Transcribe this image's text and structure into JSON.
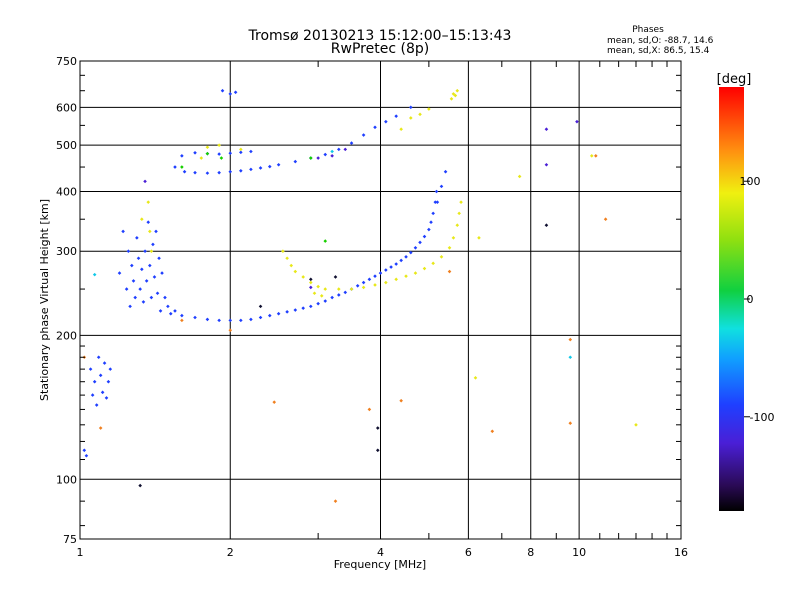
{
  "chart_data": {
    "type": "scatter",
    "title": "Tromsø 20130213 15:12:00–15:13:43",
    "subtitle": "RwPretec (8p)",
    "xlabel": "Frequency [MHz]",
    "ylabel": "Stationary phase Virtual Height [km]",
    "x_scale": "log",
    "y_scale": "log",
    "xlim": [
      1,
      16
    ],
    "ylim": [
      75,
      750
    ],
    "grid": true,
    "x_ticks": [
      1,
      2,
      4,
      6,
      8,
      10,
      16
    ],
    "y_ticks": [
      75,
      100,
      200,
      300,
      400,
      500,
      600,
      750
    ],
    "phase_info": {
      "heading": "Phases",
      "line1": "mean, sd,O: -88.7, 14.6",
      "line2": "mean, sd,X:  86.5, 15.4"
    },
    "colorbar": {
      "label": "[deg]",
      "range": [
        -180,
        180
      ],
      "ticks": [
        100,
        0,
        -100
      ]
    },
    "series": [
      {
        "phase": -100,
        "color": "#1f3fff",
        "points": [
          [
            1.02,
            115
          ],
          [
            1.03,
            112
          ],
          [
            1.05,
            170
          ],
          [
            1.06,
            150
          ],
          [
            1.07,
            160
          ],
          [
            1.08,
            143
          ],
          [
            1.09,
            180
          ],
          [
            1.1,
            165
          ],
          [
            1.11,
            152
          ],
          [
            1.12,
            175
          ],
          [
            1.13,
            148
          ],
          [
            1.14,
            160
          ],
          [
            1.15,
            170
          ],
          [
            1.2,
            270
          ],
          [
            1.22,
            330
          ],
          [
            1.24,
            250
          ],
          [
            1.25,
            300
          ],
          [
            1.26,
            230
          ],
          [
            1.27,
            280
          ],
          [
            1.28,
            260
          ],
          [
            1.29,
            240
          ],
          [
            1.3,
            320
          ],
          [
            1.31,
            290
          ],
          [
            1.32,
            250
          ],
          [
            1.33,
            275
          ],
          [
            1.34,
            235
          ],
          [
            1.35,
            300
          ],
          [
            1.36,
            260
          ],
          [
            1.37,
            345
          ],
          [
            1.38,
            280
          ],
          [
            1.39,
            240
          ],
          [
            1.4,
            310
          ],
          [
            1.41,
            265
          ],
          [
            1.42,
            330
          ],
          [
            1.43,
            245
          ],
          [
            1.44,
            290
          ],
          [
            1.45,
            225
          ],
          [
            1.46,
            270
          ],
          [
            1.48,
            240
          ],
          [
            1.5,
            230
          ],
          [
            1.52,
            222
          ],
          [
            1.55,
            225
          ],
          [
            1.6,
            220
          ],
          [
            1.7,
            218
          ],
          [
            1.8,
            216
          ],
          [
            1.9,
            215
          ],
          [
            2.0,
            215
          ],
          [
            2.1,
            215
          ],
          [
            2.2,
            216
          ],
          [
            2.3,
            218
          ],
          [
            2.4,
            220
          ],
          [
            2.5,
            222
          ],
          [
            2.6,
            224
          ],
          [
            2.7,
            226
          ],
          [
            2.8,
            228
          ],
          [
            2.9,
            230
          ],
          [
            3.0,
            233
          ],
          [
            3.1,
            236
          ],
          [
            3.2,
            240
          ],
          [
            3.3,
            243
          ],
          [
            3.4,
            246
          ],
          [
            3.5,
            250
          ],
          [
            3.6,
            254
          ],
          [
            3.7,
            258
          ],
          [
            3.8,
            262
          ],
          [
            3.9,
            266
          ],
          [
            4.0,
            270
          ],
          [
            4.1,
            274
          ],
          [
            4.2,
            278
          ],
          [
            4.3,
            282
          ],
          [
            4.4,
            287
          ],
          [
            4.5,
            292
          ],
          [
            4.6,
            298
          ],
          [
            4.7,
            305
          ],
          [
            4.8,
            313
          ],
          [
            4.9,
            322
          ],
          [
            5.0,
            333
          ],
          [
            5.05,
            345
          ],
          [
            5.1,
            360
          ],
          [
            5.15,
            380
          ],
          [
            5.18,
            400
          ],
          [
            1.62,
            440
          ],
          [
            1.7,
            438
          ],
          [
            1.8,
            437
          ],
          [
            1.9,
            438
          ],
          [
            2.0,
            440
          ],
          [
            2.1,
            442
          ],
          [
            2.2,
            445
          ],
          [
            2.3,
            448
          ],
          [
            2.4,
            451
          ],
          [
            2.5,
            455
          ],
          [
            2.7,
            462
          ],
          [
            2.9,
            470
          ],
          [
            3.1,
            478
          ],
          [
            3.3,
            490
          ],
          [
            3.5,
            505
          ],
          [
            3.7,
            525
          ],
          [
            3.9,
            545
          ],
          [
            4.1,
            560
          ],
          [
            4.3,
            575
          ],
          [
            4.6,
            600
          ],
          [
            1.7,
            482
          ],
          [
            1.8,
            480
          ],
          [
            1.9,
            479
          ],
          [
            2.0,
            481
          ],
          [
            2.1,
            483
          ],
          [
            2.2,
            485
          ],
          [
            2.0,
            640
          ],
          [
            2.05,
            645
          ],
          [
            1.93,
            650
          ],
          [
            1.55,
            450
          ],
          [
            1.6,
            475
          ],
          [
            5.4,
            440
          ],
          [
            5.3,
            410
          ],
          [
            5.2,
            380
          ]
        ]
      },
      {
        "phase": -120,
        "color": "#4a1fd6",
        "points": [
          [
            1.35,
            420
          ],
          [
            3.0,
            470
          ],
          [
            3.2,
            475
          ],
          [
            3.4,
            490
          ],
          [
            8.6,
            540
          ],
          [
            8.6,
            455
          ],
          [
            9.9,
            560
          ],
          [
            2.9,
            252
          ]
        ]
      },
      {
        "phase": 100,
        "color": "#e8e81a",
        "points": [
          [
            2.55,
            300
          ],
          [
            2.6,
            290
          ],
          [
            2.65,
            280
          ],
          [
            2.7,
            272
          ],
          [
            2.8,
            265
          ],
          [
            2.9,
            258
          ],
          [
            3.0,
            253
          ],
          [
            3.1,
            250
          ],
          [
            3.3,
            250
          ],
          [
            3.5,
            250
          ],
          [
            3.7,
            252
          ],
          [
            3.9,
            255
          ],
          [
            4.1,
            258
          ],
          [
            4.3,
            262
          ],
          [
            4.5,
            266
          ],
          [
            4.7,
            270
          ],
          [
            4.9,
            276
          ],
          [
            5.1,
            283
          ],
          [
            5.3,
            292
          ],
          [
            5.5,
            305
          ],
          [
            5.6,
            320
          ],
          [
            5.7,
            340
          ],
          [
            5.75,
            360
          ],
          [
            5.8,
            380
          ],
          [
            5.55,
            625
          ],
          [
            5.6,
            640
          ],
          [
            5.7,
            650
          ],
          [
            5.65,
            635
          ],
          [
            4.6,
            570
          ],
          [
            4.8,
            580
          ],
          [
            5.0,
            595
          ],
          [
            4.4,
            540
          ],
          [
            1.37,
            380
          ],
          [
            1.33,
            350
          ],
          [
            1.38,
            330
          ],
          [
            1.39,
            300
          ],
          [
            1.8,
            495
          ],
          [
            1.9,
            500
          ],
          [
            1.75,
            470
          ],
          [
            2.1,
            490
          ],
          [
            7.6,
            430
          ],
          [
            10.6,
            475
          ],
          [
            13.0,
            130
          ],
          [
            6.3,
            320
          ],
          [
            6.2,
            163
          ],
          [
            2.95,
            245
          ],
          [
            3.05,
            242
          ]
        ]
      },
      {
        "phase": 40,
        "color": "#18d000",
        "points": [
          [
            3.1,
            315
          ],
          [
            1.92,
            470
          ],
          [
            2.9,
            470
          ],
          [
            1.6,
            450
          ],
          [
            1.8,
            480
          ]
        ]
      },
      {
        "phase": 150,
        "color": "#f08020",
        "points": [
          [
            1.02,
            180
          ],
          [
            1.1,
            128
          ],
          [
            1.6,
            215
          ],
          [
            2.45,
            145
          ],
          [
            3.25,
            90
          ],
          [
            3.8,
            140
          ],
          [
            4.4,
            146
          ],
          [
            5.5,
            272
          ],
          [
            6.7,
            126
          ],
          [
            9.6,
            196
          ],
          [
            9.6,
            131
          ],
          [
            11.3,
            350
          ],
          [
            10.8,
            475
          ],
          [
            2.0,
            205
          ]
        ]
      },
      {
        "phase": -50,
        "color": "#10c8e8",
        "points": [
          [
            1.07,
            268
          ],
          [
            3.2,
            485
          ],
          [
            9.6,
            180
          ]
        ]
      },
      {
        "phase": -170,
        "color": "#101030",
        "points": [
          [
            1.32,
            97
          ],
          [
            3.95,
            115
          ],
          [
            3.95,
            128
          ],
          [
            8.6,
            340
          ],
          [
            2.3,
            230
          ],
          [
            2.9,
            262
          ],
          [
            3.25,
            265
          ]
        ]
      }
    ]
  }
}
